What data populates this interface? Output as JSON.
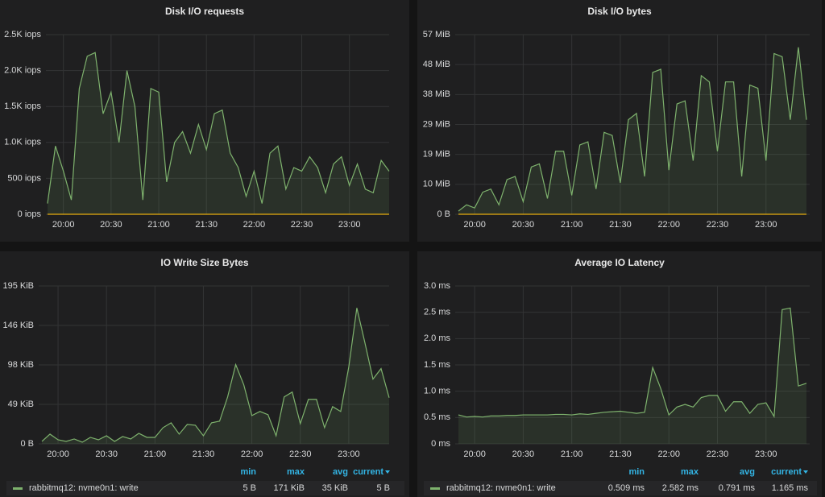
{
  "chart_data": [
    {
      "type": "line",
      "title": "Disk I/O requests",
      "x": [
        "19:50",
        "19:55",
        "20:00",
        "20:05",
        "20:10",
        "20:15",
        "20:20",
        "20:25",
        "20:30",
        "20:35",
        "20:40",
        "20:45",
        "20:50",
        "20:55",
        "21:00",
        "21:05",
        "21:10",
        "21:15",
        "21:20",
        "21:25",
        "21:30",
        "21:35",
        "21:40",
        "21:45",
        "21:50",
        "21:55",
        "22:00",
        "22:05",
        "22:10",
        "22:15",
        "22:20",
        "22:25",
        "22:30",
        "22:35",
        "22:40",
        "22:45",
        "22:50",
        "22:55",
        "23:00",
        "23:05",
        "23:10",
        "23:15",
        "23:20",
        "23:25"
      ],
      "xlim": [
        "19:49",
        "23:25"
      ],
      "xticks": [
        "20:00",
        "20:30",
        "21:00",
        "21:30",
        "22:00",
        "22:30",
        "23:00"
      ],
      "ylim": [
        0,
        2500
      ],
      "yticks": [
        {
          "value": 0,
          "label": "0 iops"
        },
        {
          "value": 500,
          "label": "500 iops"
        },
        {
          "value": 1000,
          "label": "1.0K iops"
        },
        {
          "value": 1500,
          "label": "1.5K iops"
        },
        {
          "value": 2000,
          "label": "2.0K iops"
        },
        {
          "value": 2500,
          "label": "2.5K iops"
        }
      ],
      "grid": true,
      "series": [
        {
          "color": "#7eb26d",
          "values": [
            150,
            950,
            600,
            200,
            1750,
            2200,
            2250,
            1400,
            1700,
            1000,
            2000,
            1500,
            200,
            1750,
            1700,
            450,
            1000,
            1150,
            850,
            1250,
            900,
            1400,
            1450,
            850,
            650,
            250,
            600,
            150,
            850,
            950,
            350,
            650,
            600,
            800,
            650,
            300,
            700,
            800,
            400,
            700,
            350,
            300,
            750,
            600
          ]
        },
        {
          "color": "#e5ac0e",
          "values": [
            0,
            0,
            0,
            0,
            0,
            0,
            0,
            0,
            0,
            0,
            0,
            0,
            0,
            0,
            0,
            0,
            0,
            0,
            0,
            0,
            0,
            0,
            0,
            0,
            0,
            0,
            0,
            0,
            0,
            0,
            0,
            0,
            0,
            0,
            0,
            0,
            0,
            0,
            0,
            0,
            0,
            0,
            0,
            0
          ]
        }
      ]
    },
    {
      "type": "line",
      "title": "Disk I/O bytes",
      "x": [
        "19:50",
        "19:55",
        "20:00",
        "20:05",
        "20:10",
        "20:15",
        "20:20",
        "20:25",
        "20:30",
        "20:35",
        "20:40",
        "20:45",
        "20:50",
        "20:55",
        "21:00",
        "21:05",
        "21:10",
        "21:15",
        "21:20",
        "21:25",
        "21:30",
        "21:35",
        "21:40",
        "21:45",
        "21:50",
        "21:55",
        "22:00",
        "22:05",
        "22:10",
        "22:15",
        "22:20",
        "22:25",
        "22:30",
        "22:35",
        "22:40",
        "22:45",
        "22:50",
        "22:55",
        "23:00",
        "23:05",
        "23:10",
        "23:15",
        "23:20",
        "23:25"
      ],
      "xlim": [
        "19:48",
        "23:27"
      ],
      "xticks": [
        "20:00",
        "20:30",
        "21:00",
        "21:30",
        "22:00",
        "22:30",
        "23:00"
      ],
      "ylim": [
        0,
        57
      ],
      "yticks": [
        {
          "value": 0,
          "label": "0 B"
        },
        {
          "value": 9.5,
          "label": "10 MiB"
        },
        {
          "value": 19,
          "label": "19 MiB"
        },
        {
          "value": 28.5,
          "label": "29 MiB"
        },
        {
          "value": 38,
          "label": "38 MiB"
        },
        {
          "value": 47.5,
          "label": "48 MiB"
        },
        {
          "value": 57,
          "label": "57 MiB"
        }
      ],
      "grid": true,
      "series": [
        {
          "color": "#7eb26d",
          "values": [
            1,
            3,
            2,
            7,
            8,
            3,
            11,
            12,
            4,
            15,
            16,
            5,
            20,
            20,
            6,
            22,
            23,
            8,
            26,
            25,
            10,
            30,
            32,
            12,
            45,
            46,
            14,
            35,
            36,
            17,
            44,
            42,
            20,
            42,
            42,
            12,
            41,
            40,
            17,
            51,
            50,
            30,
            53,
            30
          ]
        },
        {
          "color": "#e5ac0e",
          "values": [
            0,
            0,
            0,
            0,
            0,
            0,
            0,
            0,
            0,
            0,
            0,
            0,
            0,
            0,
            0,
            0,
            0,
            0,
            0,
            0,
            0,
            0,
            0,
            0,
            0,
            0,
            0,
            0,
            0,
            0,
            0,
            0,
            0,
            0,
            0,
            0,
            0,
            0,
            0,
            0,
            0,
            0,
            0,
            0
          ]
        }
      ]
    },
    {
      "type": "line",
      "title": "IO Write Size Bytes",
      "x": [
        "19:50",
        "19:55",
        "20:00",
        "20:05",
        "20:10",
        "20:15",
        "20:20",
        "20:25",
        "20:30",
        "20:35",
        "20:40",
        "20:45",
        "20:50",
        "20:55",
        "21:00",
        "21:05",
        "21:10",
        "21:15",
        "21:20",
        "21:25",
        "21:30",
        "21:35",
        "21:40",
        "21:45",
        "21:50",
        "21:55",
        "22:00",
        "22:05",
        "22:10",
        "22:15",
        "22:20",
        "22:25",
        "22:30",
        "22:35",
        "22:40",
        "22:45",
        "22:50",
        "22:55",
        "23:00",
        "23:05",
        "23:10",
        "23:15",
        "23:20",
        "23:25"
      ],
      "xlim": [
        "19:48",
        "23:25"
      ],
      "xticks": [
        "20:00",
        "20:30",
        "21:00",
        "21:30",
        "22:00",
        "22:30",
        "23:00"
      ],
      "ylim": [
        0,
        195.2
      ],
      "yticks": [
        {
          "value": 0,
          "label": "0 B"
        },
        {
          "value": 48.8,
          "label": "49 KiB"
        },
        {
          "value": 97.6,
          "label": "98 KiB"
        },
        {
          "value": 146.4,
          "label": "146 KiB"
        },
        {
          "value": 195.2,
          "label": "195 KiB"
        }
      ],
      "grid": true,
      "series": [
        {
          "name": "rabbitmq12: nvme0n1: write",
          "color": "#7eb26d",
          "values": [
            3,
            12,
            5,
            3,
            6,
            2,
            8,
            5,
            10,
            3,
            9,
            6,
            13,
            8,
            8,
            20,
            26,
            12,
            24,
            23,
            10,
            26,
            28,
            58,
            98,
            73,
            35,
            40,
            36,
            10,
            58,
            64,
            25,
            55,
            55,
            20,
            46,
            40,
            95,
            168,
            125,
            80,
            93,
            57
          ]
        }
      ],
      "legend": {
        "columns": [
          "min",
          "max",
          "avg",
          "current"
        ],
        "values": [
          "5 B",
          "171 KiB",
          "35 KiB",
          "5 B"
        ]
      }
    },
    {
      "type": "line",
      "title": "Average IO Latency",
      "x": [
        "19:50",
        "19:55",
        "20:00",
        "20:05",
        "20:10",
        "20:15",
        "20:20",
        "20:25",
        "20:30",
        "20:35",
        "20:40",
        "20:45",
        "20:50",
        "20:55",
        "21:00",
        "21:05",
        "21:10",
        "21:15",
        "21:20",
        "21:25",
        "21:30",
        "21:35",
        "21:40",
        "21:45",
        "21:50",
        "21:55",
        "22:00",
        "22:05",
        "22:10",
        "22:15",
        "22:20",
        "22:25",
        "22:30",
        "22:35",
        "22:40",
        "22:45",
        "22:50",
        "22:55",
        "23:00",
        "23:05",
        "23:10",
        "23:15",
        "23:20",
        "23:25"
      ],
      "xlim": [
        "19:48",
        "23:27"
      ],
      "xticks": [
        "20:00",
        "20:30",
        "21:00",
        "21:30",
        "22:00",
        "22:30",
        "23:00"
      ],
      "ylim": [
        0,
        3
      ],
      "yticks": [
        {
          "value": 0,
          "label": "0 ms"
        },
        {
          "value": 0.5,
          "label": "0.5 ms"
        },
        {
          "value": 1,
          "label": "1.0 ms"
        },
        {
          "value": 1.5,
          "label": "1.5 ms"
        },
        {
          "value": 2,
          "label": "2.0 ms"
        },
        {
          "value": 2.5,
          "label": "2.5 ms"
        },
        {
          "value": 3,
          "label": "3.0 ms"
        }
      ],
      "grid": true,
      "series": [
        {
          "name": "rabbitmq12: nvme0n1: write",
          "color": "#7eb26d",
          "values": [
            0.55,
            0.51,
            0.52,
            0.51,
            0.53,
            0.53,
            0.54,
            0.54,
            0.55,
            0.55,
            0.55,
            0.55,
            0.56,
            0.56,
            0.55,
            0.57,
            0.56,
            0.58,
            0.6,
            0.61,
            0.62,
            0.6,
            0.58,
            0.6,
            1.45,
            1.05,
            0.55,
            0.7,
            0.75,
            0.7,
            0.88,
            0.92,
            0.92,
            0.62,
            0.8,
            0.8,
            0.58,
            0.75,
            0.78,
            0.52,
            2.55,
            2.58,
            1.1,
            1.15
          ]
        }
      ],
      "legend": {
        "columns": [
          "min",
          "max",
          "avg",
          "current"
        ],
        "values": [
          "0.509 ms",
          "2.582 ms",
          "0.791 ms",
          "1.165 ms"
        ]
      }
    }
  ]
}
